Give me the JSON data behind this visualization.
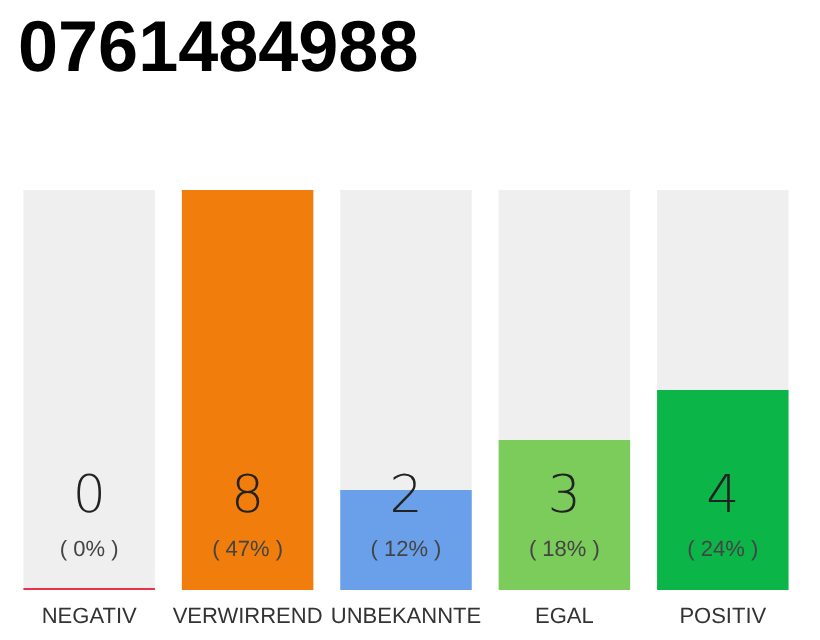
{
  "chart_data": {
    "type": "bar",
    "title": "0761484988",
    "categories": [
      "NEGATIV",
      "VERWIRREND",
      "UNBEKANNTE",
      "EGAL",
      "POSITIV"
    ],
    "values": [
      0,
      8,
      2,
      3,
      4
    ],
    "colors": [
      "#e8324a",
      "#f07d0c",
      "#6aa0ea",
      "#7ccc5c",
      "#0bb548"
    ],
    "tick_labels": "x",
    "grid": false,
    "value_labels": [
      "0\n( 0% )",
      "8\n( 47% )",
      "2\n( 12% )",
      "3\n( 18% )",
      "4\n( 24% )"
    ]
  }
}
